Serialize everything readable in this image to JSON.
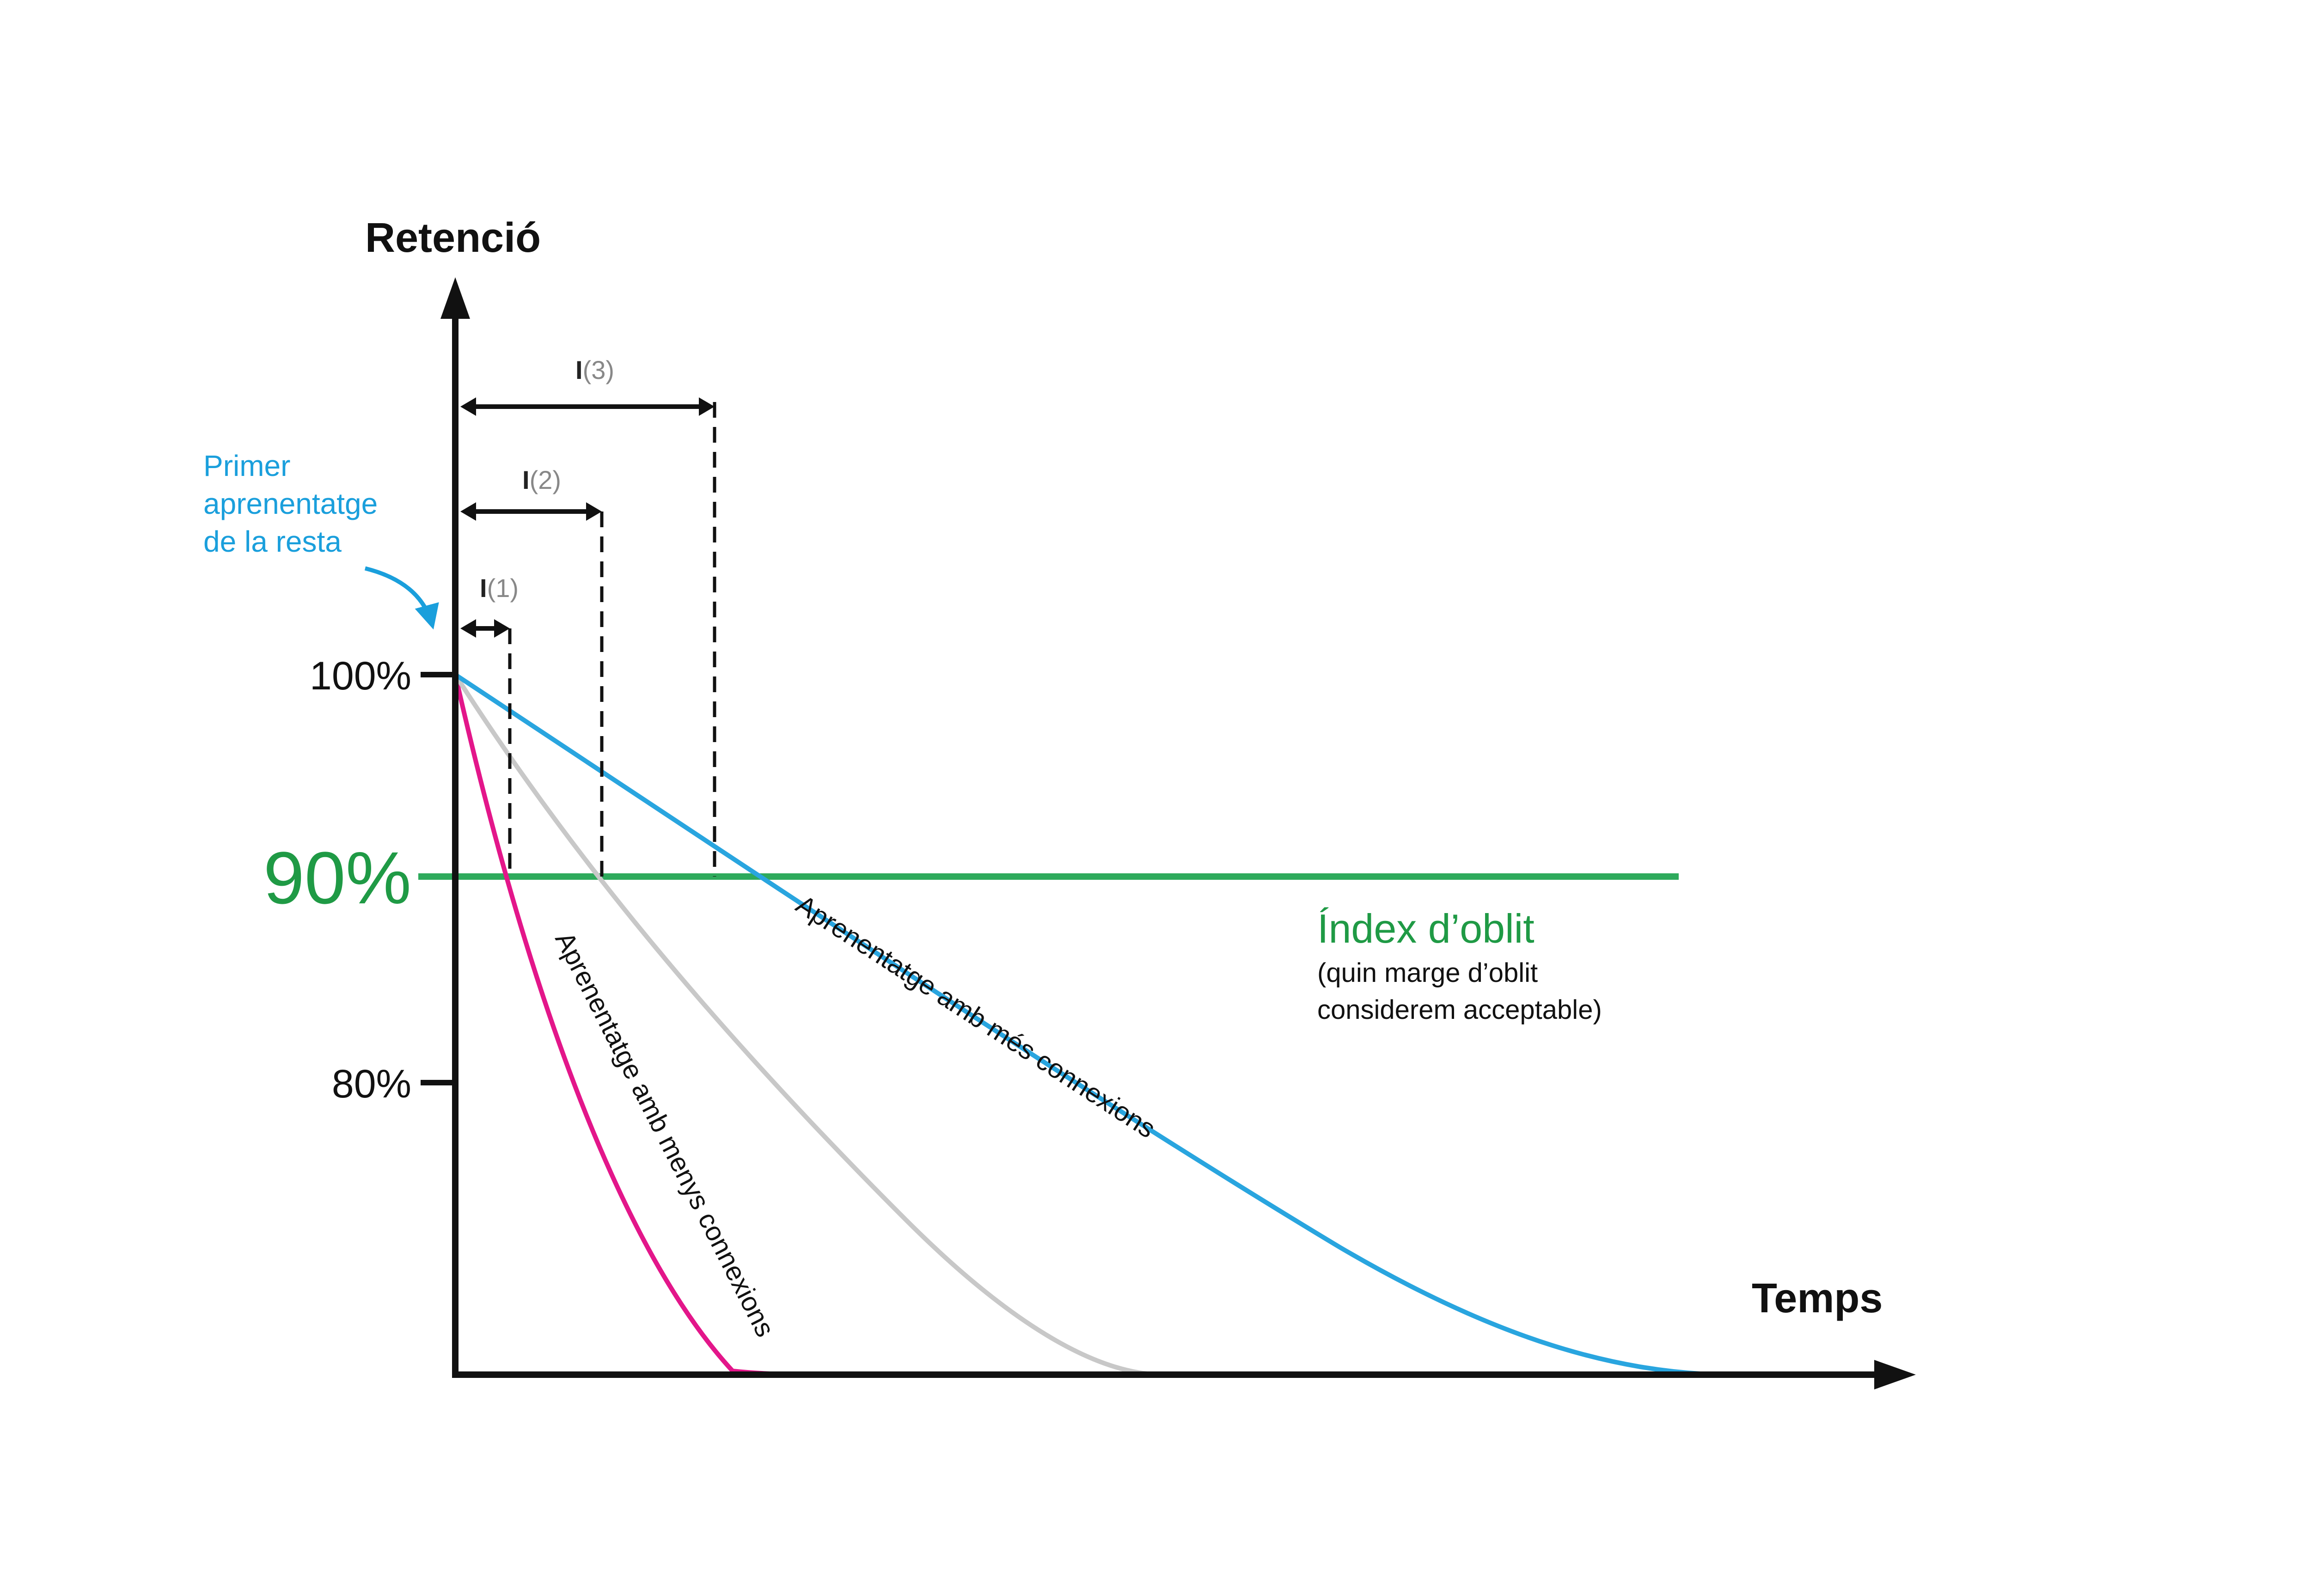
{
  "colors": {
    "axis": "#111111",
    "threshold": "#2eaa5c",
    "threshold_text": "#1f9a45",
    "curve_more": "#29a5df",
    "curve_mid": "#c8c8c8",
    "curve_less": "#e3168a",
    "note_blue": "#1a9fdc"
  },
  "axes": {
    "y_title": "Retenció",
    "x_title": "Temps",
    "y_ticks": [
      "100%",
      "90%",
      "80%"
    ]
  },
  "threshold": {
    "label": "Índex d’oblit",
    "description_line1": "(quin marge d’oblit",
    "description_line2": "considerem acceptable)"
  },
  "first_learning_note": {
    "line1": "Primer",
    "line2": "aprenentatge",
    "line3": "de la resta"
  },
  "intervals": [
    {
      "main": "I",
      "sub": "(1)"
    },
    {
      "main": "I",
      "sub": "(2)"
    },
    {
      "main": "I",
      "sub": "(3)"
    }
  ],
  "curves": {
    "more": "Aprenentatge amb més connexions",
    "less": "Aprenentatge amb menys connexions"
  }
}
